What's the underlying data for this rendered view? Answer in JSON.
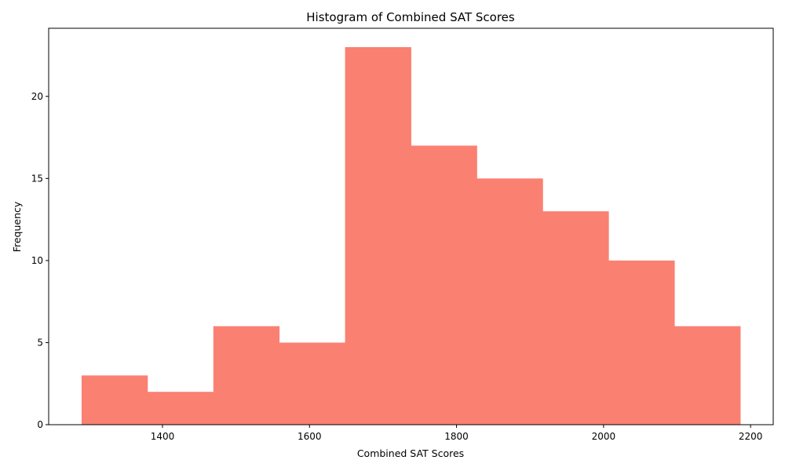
{
  "chart_data": {
    "type": "bar",
    "title": "Histogram of Combined SAT Scores",
    "xlabel": "Combined SAT Scores",
    "ylabel": "Frequency",
    "bin_edges": [
      1290,
      1379.6,
      1469.2,
      1558.8,
      1648.4,
      1738,
      1827.6,
      1917.2,
      2006.8,
      2096.4,
      2186
    ],
    "values": [
      3,
      2,
      6,
      5,
      23,
      17,
      15,
      13,
      10,
      6
    ],
    "xlim": [
      1245.2,
      2230.8
    ],
    "ylim": [
      0,
      24.15
    ],
    "x_ticks": [
      1400,
      1600,
      1800,
      2000,
      2200
    ],
    "y_ticks": [
      0,
      5,
      10,
      15,
      20
    ],
    "bar_color": "#fa8072",
    "grid": false,
    "legend": "none"
  }
}
